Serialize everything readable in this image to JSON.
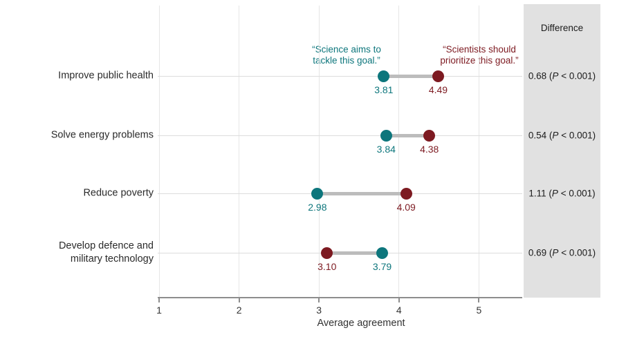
{
  "chart_data": {
    "type": "dumbbell",
    "title": "",
    "xlabel": "Average agreement",
    "x_ticks": [
      1,
      2,
      3,
      4,
      5
    ],
    "xlim": [
      0.98,
      5.55
    ],
    "grid": "vertical-light",
    "categories": [
      "Improve public health",
      "Solve energy problems",
      "Reduce poverty",
      "Develop defence and military technology"
    ],
    "categories_lines": [
      [
        "Improve public health"
      ],
      [
        "Solve energy problems"
      ],
      [
        "Reduce poverty"
      ],
      [
        "Develop defence and",
        "military technology"
      ]
    ],
    "series": [
      {
        "name": "Science aims to tackle this goal.",
        "color": "#0d767c",
        "values": [
          3.81,
          3.84,
          2.98,
          3.79
        ]
      },
      {
        "name": "Scientists should prioritize this goal.",
        "color": "#7d1a21",
        "values": [
          4.49,
          4.38,
          4.09,
          3.1
        ]
      }
    ],
    "differences": [
      {
        "prefix": "0.68 (",
        "p": "P",
        "suffix": " < 0.001)",
        "full": "0.68 (P < 0.001)"
      },
      {
        "prefix": "0.54 (",
        "p": "P",
        "suffix": " < 0.001)",
        "full": "0.54 (P < 0.001)"
      },
      {
        "prefix": "1.11 (",
        "p": "P",
        "suffix": " < 0.001)",
        "full": "1.11 (P < 0.001)"
      },
      {
        "prefix": "0.69 (",
        "p": "P",
        "suffix": " < 0.001)",
        "full": "0.69 (P < 0.001)"
      }
    ]
  },
  "annotations": {
    "aims": {
      "line1": "“Science aims to",
      "line2": "tackle this goal.”",
      "color": "#0d767c"
    },
    "should": {
      "line1": "“Scientists should",
      "line2": "prioritize this goal.”",
      "color": "#7d1a21"
    }
  },
  "diff_panel": {
    "header": "Difference",
    "background": "#e1e1e1"
  },
  "axis": {
    "label": "Average agreement",
    "tick_labels": [
      "1",
      "2",
      "3",
      "4",
      "5"
    ]
  }
}
